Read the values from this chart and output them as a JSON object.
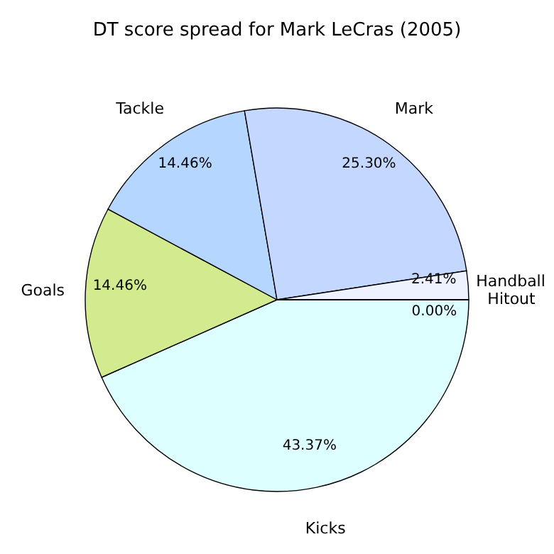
{
  "chart_data": {
    "type": "pie",
    "title": "DT score spread for Mark LeCras (2005)",
    "categories": [
      "Kicks",
      "Goals",
      "Tackle",
      "Mark",
      "Handball",
      "Hitout"
    ],
    "values": [
      43.37,
      14.46,
      14.46,
      25.3,
      2.41,
      0.0
    ],
    "value_labels": [
      "43.37%",
      "14.46%",
      "14.46%",
      "25.30%",
      "2.41%",
      "0.00%"
    ],
    "colors": [
      "#ddffff",
      "#d2eb8f",
      "#b4d6ff",
      "#c4d8ff",
      "#eef2ff",
      "#ffffff"
    ],
    "legend": false
  }
}
